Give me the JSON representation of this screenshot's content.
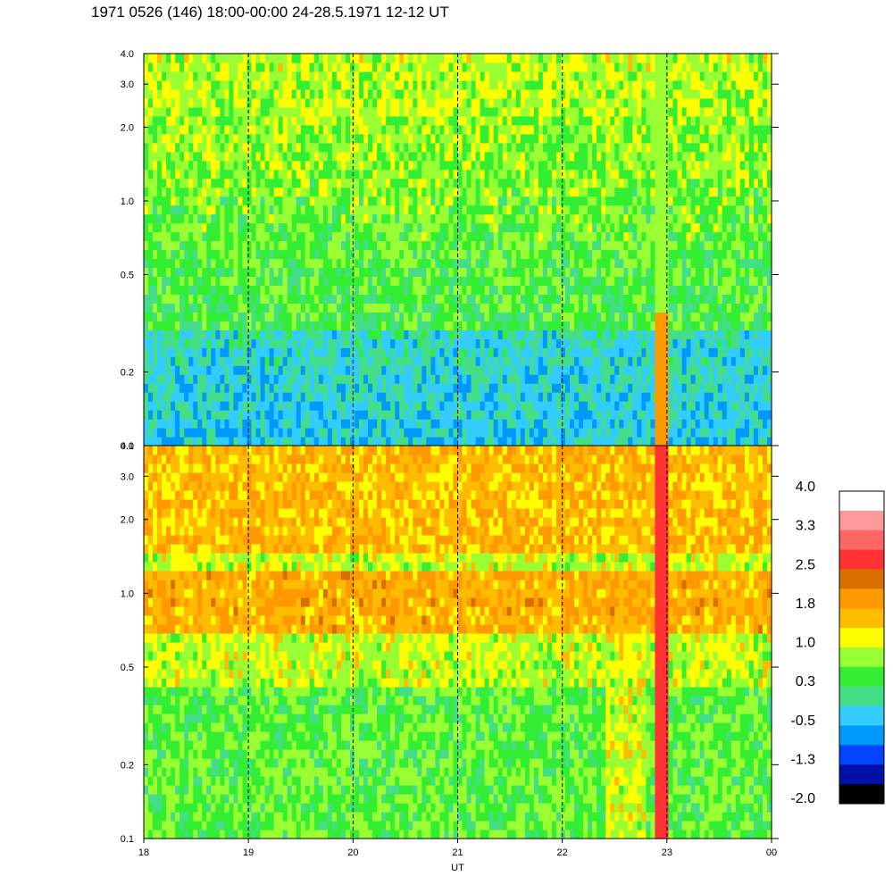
{
  "title": "1971 0526 (146) 18:00-00:00 24-28.5.1971  12-12 UT",
  "chart_data": {
    "type": "heatmap",
    "xlabel": "UT",
    "x_ticks": [
      "18",
      "19",
      "20",
      "21",
      "22",
      "23",
      "00"
    ],
    "x_range": [
      18,
      24
    ],
    "dashed_hour_lines": [
      19,
      20,
      21,
      22,
      23
    ],
    "y_scale": "log",
    "y_range": [
      0.1,
      4.0
    ],
    "y_ticks": [
      "0.1",
      "0.2",
      "0.5",
      "1.0",
      "2.0",
      "3.0",
      "4.0"
    ],
    "panels": [
      {
        "name": "upper"
      },
      {
        "name": "lower"
      }
    ],
    "colorbar": {
      "labels": [
        "4.0",
        "3.3",
        "2.5",
        "1.8",
        "1.0",
        "0.3",
        "-0.5",
        "-1.3",
        "-2.0"
      ],
      "colors": [
        "#ffffff",
        "#ff9999",
        "#ff6666",
        "#ff3333",
        "#d87000",
        "#ff9900",
        "#ffbb00",
        "#ffff00",
        "#99ff33",
        "#33ee33",
        "#44dd88",
        "#33ccff",
        "#0099ff",
        "#0044ff",
        "#0011aa",
        "#000000"
      ]
    }
  }
}
